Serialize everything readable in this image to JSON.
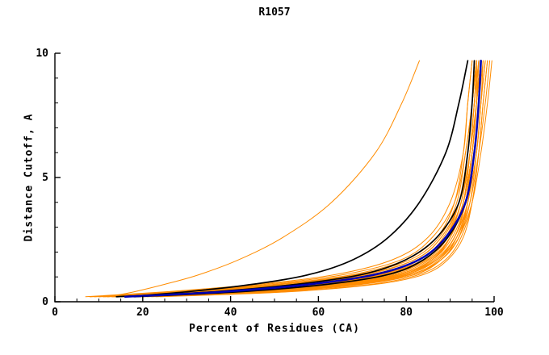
{
  "chart_data": {
    "type": "line",
    "title": "R1057",
    "xlabel": "Percent of Residues (CA)",
    "ylabel": "Distance Cutoff, A",
    "xlim": [
      0,
      100
    ],
    "ylim": [
      0,
      10
    ],
    "x_ticks": [
      0,
      20,
      40,
      60,
      80,
      100
    ],
    "x_minor_step": 5,
    "y_ticks": [
      0,
      5,
      10
    ],
    "y_minor_step": 1,
    "grid": false,
    "legend": "none",
    "colors": {
      "orange": "#ff8c00",
      "black": "#000000",
      "blue": "#0000b3"
    },
    "line_widths": {
      "orange": 1,
      "black": 1.7,
      "blue": 2.5
    },
    "y_grid": [
      0.2,
      0.4,
      0.7,
      1.1,
      1.7,
      2.6,
      4,
      6,
      8,
      9.7
    ],
    "series": [
      {
        "c": "orange",
        "x": [
          10,
          35,
          58,
          74,
          84,
          89,
          92,
          94,
          95,
          95.5
        ]
      },
      {
        "c": "orange",
        "x": [
          14,
          40,
          62,
          78,
          86,
          90,
          93,
          95,
          96,
          96
        ]
      },
      {
        "c": "orange",
        "x": [
          8,
          30,
          52,
          70,
          82,
          88,
          92,
          94,
          95,
          96
        ]
      },
      {
        "c": "orange",
        "x": [
          18,
          45,
          66,
          80,
          87,
          91,
          93.5,
          95,
          96,
          97
        ]
      },
      {
        "c": "orange",
        "x": [
          12,
          38,
          60,
          76,
          85,
          90,
          93,
          95,
          96,
          97
        ]
      },
      {
        "c": "orange",
        "x": [
          20,
          48,
          68,
          81,
          88,
          92,
          94,
          96,
          97,
          97.5
        ]
      },
      {
        "c": "orange",
        "x": [
          9,
          28,
          50,
          68,
          80,
          87,
          91,
          93,
          94,
          95
        ]
      },
      {
        "c": "orange",
        "x": [
          16,
          42,
          64,
          79,
          86,
          90,
          93,
          94.5,
          95.5,
          96
        ]
      },
      {
        "c": "orange",
        "x": [
          22,
          50,
          70,
          82,
          88,
          92,
          94.5,
          96,
          97,
          98
        ]
      },
      {
        "c": "orange",
        "x": [
          11,
          33,
          56,
          73,
          83,
          89,
          92.5,
          94,
          95,
          96
        ]
      },
      {
        "c": "orange",
        "x": [
          13,
          36,
          59,
          75,
          84,
          89.5,
          93,
          95,
          96,
          96.5
        ]
      },
      {
        "c": "orange",
        "x": [
          17,
          44,
          65,
          80,
          87,
          91,
          94,
          95.5,
          96.5,
          97
        ]
      },
      {
        "c": "orange",
        "x": [
          7,
          25,
          46,
          64,
          77,
          85,
          90,
          93,
          94,
          95
        ]
      },
      {
        "c": "orange",
        "x": [
          15,
          41,
          63,
          78,
          86,
          90.5,
          93.5,
          95,
          96,
          97
        ]
      },
      {
        "c": "orange",
        "x": [
          19,
          46,
          67,
          81,
          87.5,
          91.5,
          94,
          96,
          97,
          98
        ]
      },
      {
        "c": "orange",
        "x": [
          10,
          32,
          55,
          72,
          83,
          88.5,
          92,
          94,
          95,
          95.5
        ]
      },
      {
        "c": "orange",
        "x": [
          23,
          52,
          72,
          83,
          89,
          92.5,
          95,
          96.5,
          97.5,
          98.5
        ]
      },
      {
        "c": "orange",
        "x": [
          12,
          37,
          60,
          76,
          85,
          90,
          93,
          94.5,
          95.5,
          96
        ]
      },
      {
        "c": "orange",
        "x": [
          14,
          39,
          61,
          77,
          85.5,
          90,
          93,
          95,
          96,
          97
        ]
      },
      {
        "c": "orange",
        "x": [
          8,
          27,
          48,
          66,
          79,
          86,
          91,
          93.5,
          95,
          96
        ]
      },
      {
        "c": "orange",
        "x": [
          16,
          43,
          64,
          79,
          86.5,
          91,
          93.5,
          95,
          96,
          96.5
        ]
      },
      {
        "c": "orange",
        "x": [
          21,
          49,
          69,
          82,
          88,
          92,
          94,
          95.5,
          96.5,
          97
        ]
      },
      {
        "c": "orange",
        "x": [
          11,
          34,
          57,
          74,
          84,
          89,
          92.5,
          94.5,
          95.5,
          96.5
        ]
      },
      {
        "c": "orange",
        "x": [
          13,
          38,
          60,
          76,
          85,
          90,
          93,
          95,
          96,
          97
        ]
      },
      {
        "c": "orange",
        "x": [
          18,
          45,
          66,
          80,
          87,
          91,
          94,
          95.5,
          96.5,
          97.5
        ]
      },
      {
        "c": "orange",
        "x": [
          9,
          29,
          51,
          69,
          81,
          87.5,
          91.5,
          93.5,
          95,
          96
        ]
      },
      {
        "c": "orange",
        "x": [
          15,
          40,
          62,
          78,
          86,
          90,
          93,
          94.5,
          95.5,
          96.5
        ]
      },
      {
        "c": "orange",
        "x": [
          24,
          53,
          73,
          84,
          89.5,
          93,
          95,
          96.5,
          97.5,
          98.5
        ]
      },
      {
        "c": "orange",
        "x": [
          12,
          18,
          25,
          33,
          42,
          52,
          63,
          73,
          79,
          83
        ]
      },
      {
        "c": "orange",
        "x": [
          10,
          31,
          54,
          71,
          82,
          88,
          92,
          94,
          95,
          96
        ]
      },
      {
        "c": "orange",
        "x": [
          20,
          47,
          68,
          81,
          88,
          91.5,
          94,
          95.5,
          96.5,
          97
        ]
      },
      {
        "c": "orange",
        "x": [
          13,
          36,
          58,
          75,
          84.5,
          89.5,
          92.5,
          94.5,
          96,
          97
        ]
      },
      {
        "c": "orange",
        "x": [
          17,
          44,
          66,
          81,
          88,
          92,
          95,
          97,
          98.5,
          99.5
        ]
      },
      {
        "c": "orange",
        "x": [
          14,
          40,
          63,
          79,
          87,
          91.5,
          94.5,
          96.5,
          98,
          99
        ]
      },
      {
        "c": "black",
        "x": [
          16,
          30,
          45,
          58,
          68,
          76,
          83,
          89,
          92,
          94
        ]
      },
      {
        "c": "black",
        "x": [
          14,
          36,
          55,
          70,
          80,
          87,
          92,
          94,
          95,
          95.5
        ]
      },
      {
        "c": "black",
        "x": [
          18,
          42,
          62,
          76,
          84,
          89.5,
          93.5,
          95.5,
          96.5,
          97
        ]
      },
      {
        "c": "blue",
        "x": [
          16,
          38,
          58,
          73,
          83,
          89,
          93.5,
          95.5,
          96.5,
          97
        ]
      }
    ]
  }
}
